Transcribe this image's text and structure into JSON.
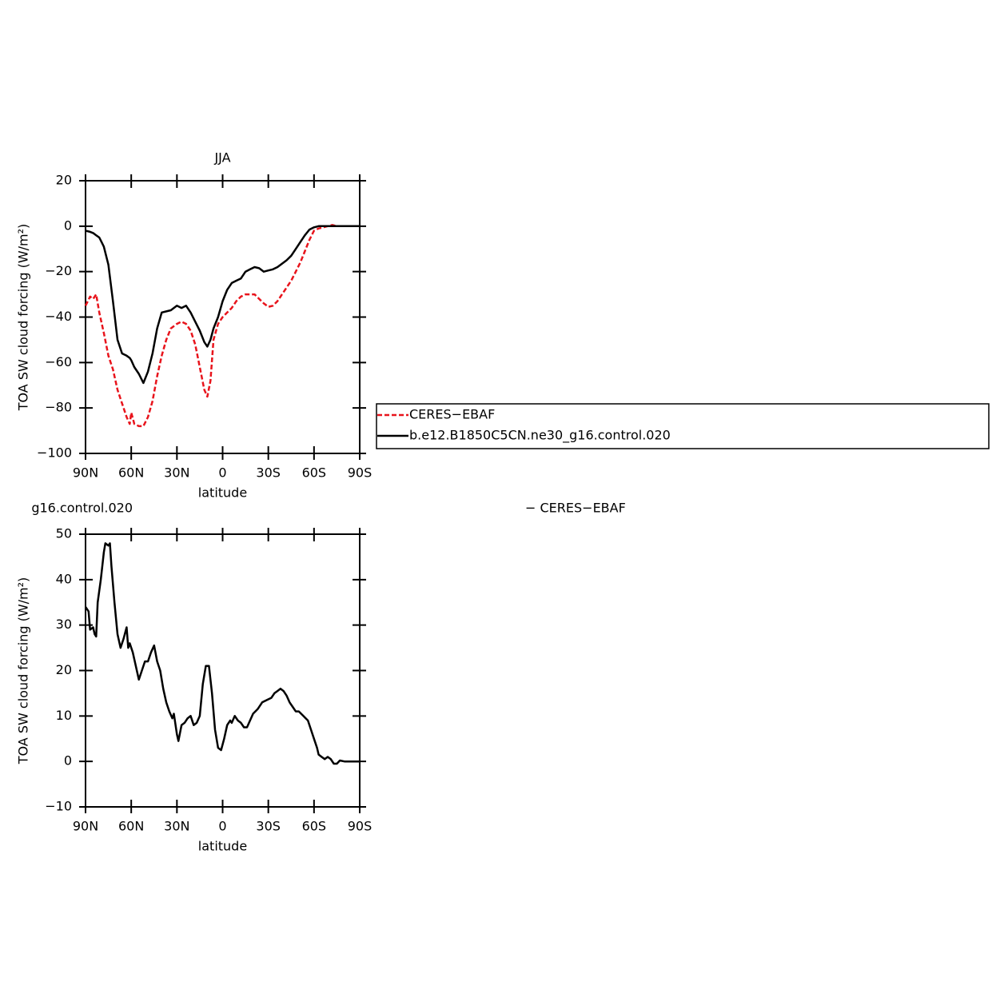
{
  "chart_data": [
    {
      "type": "line",
      "title": "JJA",
      "ylabel": "TOA SW cloud forcing (W/m²)",
      "xlabel": "latitude",
      "xlim": [
        90,
        -90
      ],
      "xticks": [
        {
          "value": 90,
          "label": "90N"
        },
        {
          "value": 60,
          "label": "60N"
        },
        {
          "value": 30,
          "label": "30N"
        },
        0,
        {
          "value": -30,
          "label": "30S"
        },
        {
          "value": -60,
          "label": "60S"
        },
        {
          "value": -90,
          "label": "90S"
        }
      ],
      "ylim": [
        -100,
        20
      ],
      "yticks": [
        {
          "value": -100,
          "label": "−100"
        },
        {
          "value": -80,
          "label": "−80"
        },
        {
          "value": -60,
          "label": "−60"
        },
        {
          "value": -40,
          "label": "−40"
        },
        {
          "value": -20,
          "label": "−20"
        },
        0,
        20
      ],
      "legend": "right",
      "x": [
        90,
        87,
        85,
        83,
        81,
        78,
        75,
        72,
        69,
        66,
        63,
        61,
        60,
        58,
        55,
        52,
        49,
        46,
        43,
        40,
        37,
        34,
        30,
        27,
        24,
        21,
        18,
        15,
        12,
        10,
        8,
        6,
        3,
        0,
        -3,
        -6,
        -9,
        -12,
        -15,
        -18,
        -21,
        -24,
        -27,
        -30,
        -33,
        -36,
        -39,
        -42,
        -45,
        -48,
        -51,
        -54,
        -57,
        -60,
        -63,
        -66,
        -69,
        -72,
        -75,
        -78,
        -81,
        -84,
        -87,
        -90
      ],
      "series": [
        {
          "name": "CERES−EBAF",
          "color": "#e8141c",
          "style": "dashed",
          "values": [
            -35,
            -31,
            -32,
            -30,
            -38,
            -47,
            -57,
            -63,
            -72,
            -78,
            -84,
            -87,
            -82,
            -87,
            -88,
            -88,
            -84,
            -77,
            -66,
            -57,
            -50,
            -45,
            -43,
            -42,
            -43,
            -46,
            -52,
            -62,
            -72,
            -75,
            -68,
            -50,
            -43,
            -40,
            -38,
            -36,
            -33,
            -31,
            -30,
            -30,
            -30,
            -32,
            -34,
            -35.5,
            -35,
            -33,
            -30,
            -27,
            -24,
            -20,
            -16,
            -11,
            -6,
            -2,
            -1,
            -0.5,
            0,
            0.5,
            0,
            0,
            0,
            0,
            0,
            0
          ]
        },
        {
          "name": "b.e12.B1850C5CN.ne30_g16.control.020",
          "color": "#000000",
          "style": "solid",
          "values": [
            -2,
            -2.5,
            -3,
            -4,
            -5,
            -9,
            -17,
            -33,
            -50,
            -56,
            -57,
            -58,
            -59,
            -62,
            -65,
            -69,
            -64,
            -56,
            -45,
            -38,
            -37.5,
            -37,
            -35,
            -36,
            -35,
            -38,
            -42,
            -46,
            -51,
            -53,
            -50,
            -45,
            -40,
            -33,
            -28,
            -25,
            -24,
            -23,
            -20,
            -19,
            -18,
            -18.5,
            -20,
            -19.5,
            -19,
            -18,
            -16.5,
            -15,
            -13,
            -10,
            -7,
            -4,
            -1.5,
            -0.5,
            0,
            0,
            0,
            0,
            0,
            0,
            0,
            0,
            0,
            0
          ]
        }
      ]
    },
    {
      "type": "line",
      "title": [
        "g16.control.020",
        "− CERES−EBAF"
      ],
      "ylabel": "TOA SW cloud forcing (W/m²)",
      "xlabel": "latitude",
      "xlim": [
        90,
        -90
      ],
      "xticks": [
        {
          "value": 90,
          "label": "90N"
        },
        {
          "value": 60,
          "label": "60N"
        },
        {
          "value": 30,
          "label": "30N"
        },
        0,
        {
          "value": -30,
          "label": "30S"
        },
        {
          "value": -60,
          "label": "60S"
        },
        {
          "value": -90,
          "label": "90S"
        }
      ],
      "ylim": [
        -10,
        50
      ],
      "yticks": [
        {
          "value": -10,
          "label": "−10"
        },
        0,
        10,
        20,
        30,
        40,
        50
      ],
      "x": [
        90,
        88,
        87,
        85,
        84,
        83,
        82,
        80,
        78,
        77,
        75,
        74,
        73,
        71,
        69,
        67,
        65,
        63,
        62,
        61,
        59,
        57,
        55,
        53,
        51,
        49,
        47,
        45,
        43,
        41,
        39,
        37,
        35,
        33,
        32,
        30,
        29,
        27,
        25,
        23,
        21,
        19,
        17,
        15,
        13,
        11,
        9,
        7,
        5,
        3,
        1,
        -1,
        -3,
        -5,
        -6,
        -8,
        -10,
        -12,
        -14,
        -16,
        -18,
        -20,
        -23,
        -26,
        -29,
        -32,
        -34,
        -36,
        -38,
        -40,
        -42,
        -44,
        -46,
        -48,
        -50,
        -53,
        -56,
        -58,
        -60,
        -62,
        -63,
        -65,
        -67,
        -69,
        -71,
        -73,
        -75,
        -77,
        -80,
        -85,
        -90
      ],
      "series": [
        {
          "color": "#000000",
          "style": "solid",
          "values": [
            34,
            33,
            29,
            29.5,
            28,
            27.5,
            35,
            40,
            46,
            48,
            47.5,
            48,
            43,
            35,
            28,
            25,
            27,
            29.5,
            25,
            26,
            24,
            21,
            18,
            20,
            22,
            22,
            24,
            25.5,
            22,
            20,
            16,
            13,
            11,
            9.5,
            10.5,
            6,
            4.5,
            8,
            8.5,
            9.5,
            10,
            8,
            8.5,
            10,
            17,
            21,
            21,
            15,
            7,
            3,
            2.5,
            5,
            8,
            9,
            8.5,
            10,
            9,
            8.5,
            7.5,
            7.5,
            9,
            10.5,
            11.5,
            13,
            13.5,
            14,
            15,
            15.5,
            16,
            15.5,
            14.5,
            13,
            12,
            11,
            11,
            10,
            9,
            7,
            5,
            3,
            1.5,
            1,
            0.5,
            1,
            0.5,
            -0.5,
            -0.5,
            0.2,
            0,
            0,
            0
          ]
        }
      ]
    }
  ]
}
